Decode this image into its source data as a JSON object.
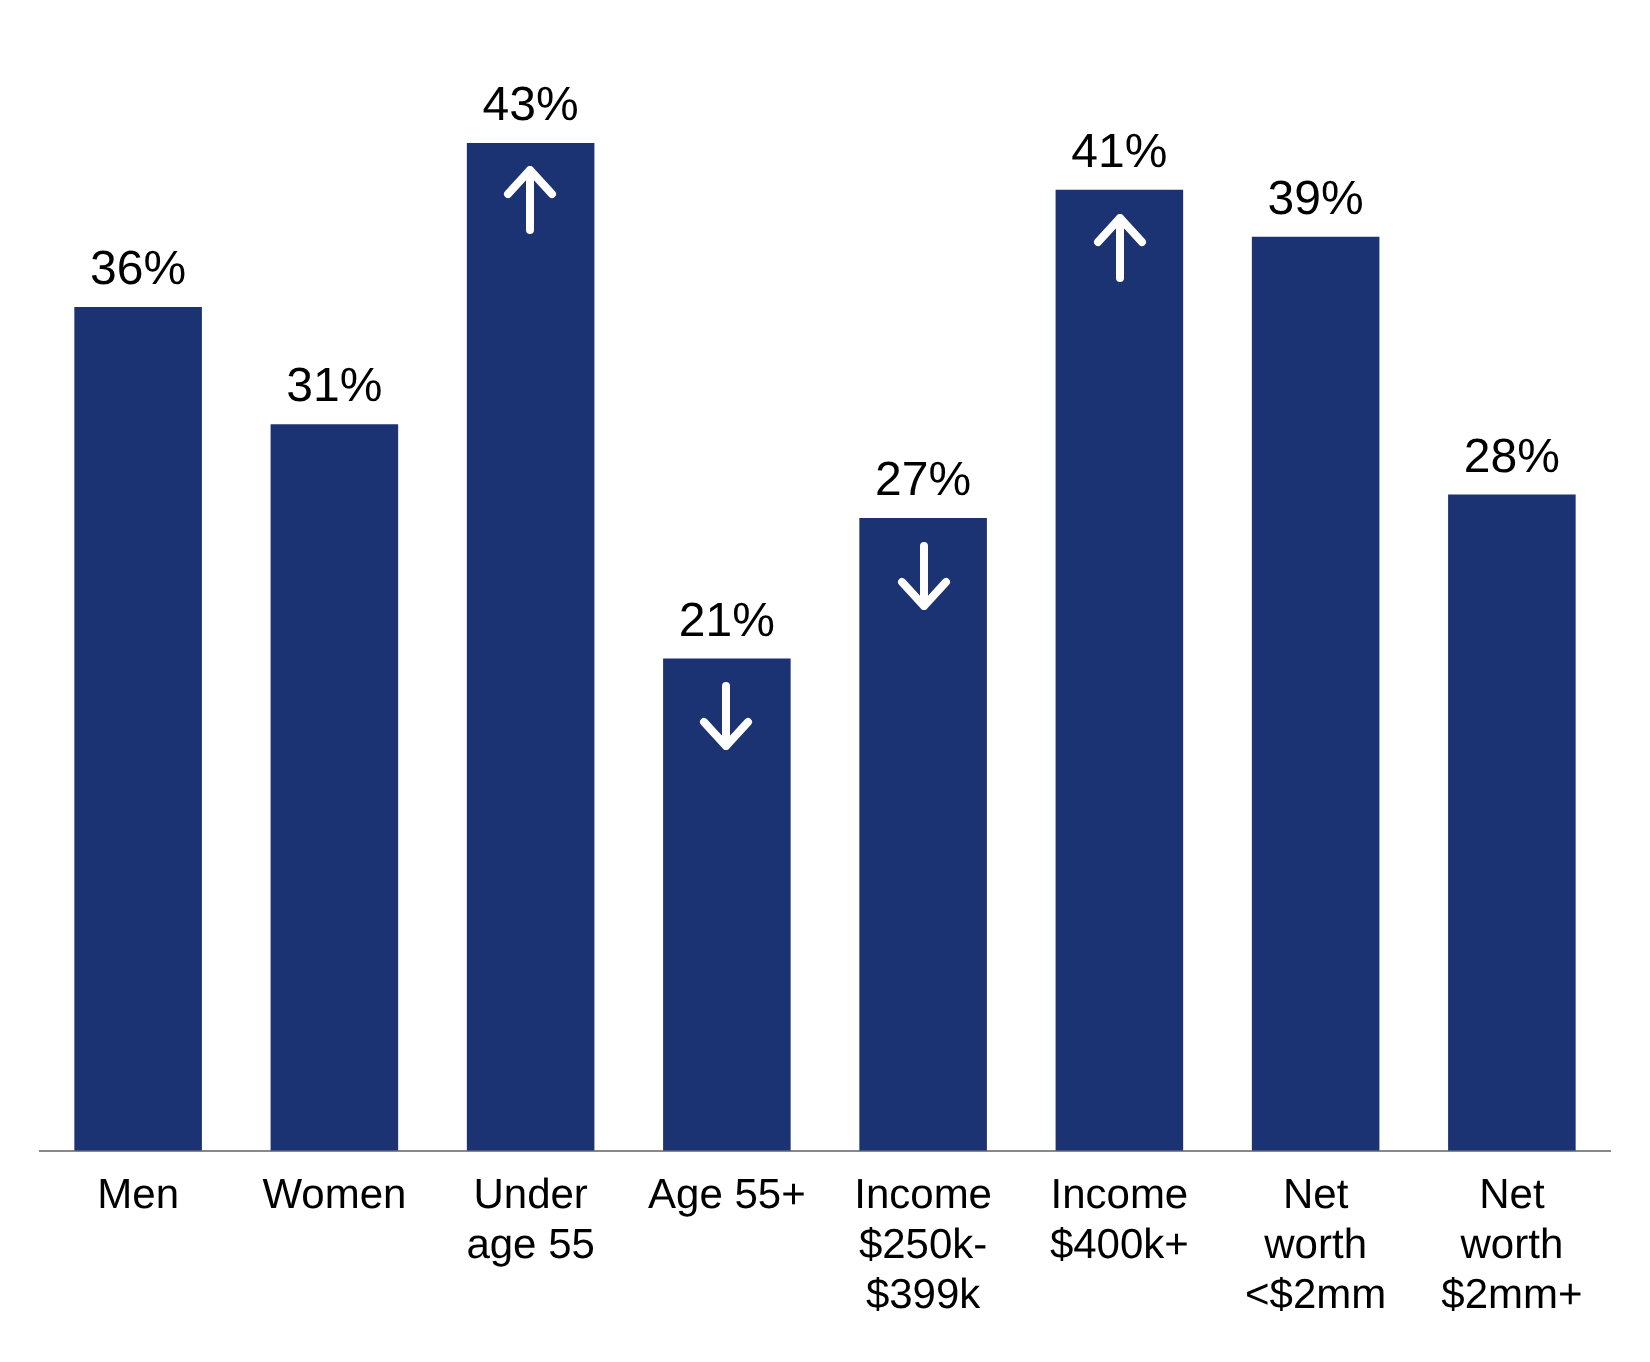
{
  "chart_data": {
    "type": "bar",
    "categories": [
      "Men",
      "Women",
      "Under age 55",
      "Age 55+",
      "Income $250k-$399k",
      "Income $400k+",
      "Net worth <$2mm",
      "Net worth $2mm+"
    ],
    "values": [
      36,
      31,
      43,
      21,
      27,
      41,
      39,
      28
    ],
    "value_labels": [
      "36%",
      "31%",
      "43%",
      "21%",
      "27%",
      "41%",
      "39%",
      "28%"
    ],
    "color": "#1b3273",
    "grid": false,
    "legend": false
  }
}
